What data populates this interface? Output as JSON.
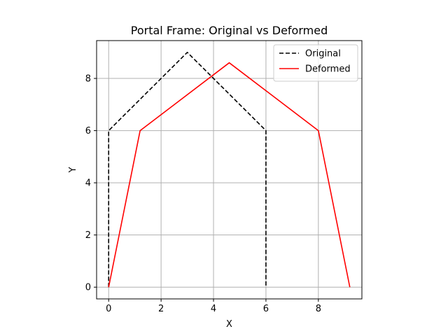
{
  "chart_data": {
    "type": "line",
    "title": "Portal Frame: Original vs Deformed",
    "xlabel": "X",
    "ylabel": "Y",
    "xlim": [
      -0.46,
      9.66
    ],
    "ylim": [
      -0.45,
      9.45
    ],
    "xticks": [
      0,
      2,
      4,
      6,
      8
    ],
    "yticks": [
      0,
      2,
      4,
      6,
      8
    ],
    "grid": true,
    "legend_position": "top-right",
    "series": [
      {
        "name": "Original",
        "color": "#000000",
        "style": "dashed",
        "x": [
          0,
          0,
          3,
          6,
          6
        ],
        "y": [
          0,
          6,
          9,
          6,
          0
        ]
      },
      {
        "name": "Deformed",
        "color": "#ff0000",
        "style": "solid",
        "x": [
          0,
          1.2,
          4.6,
          8,
          9.2
        ],
        "y": [
          0,
          6,
          8.6,
          6,
          0
        ]
      }
    ]
  }
}
